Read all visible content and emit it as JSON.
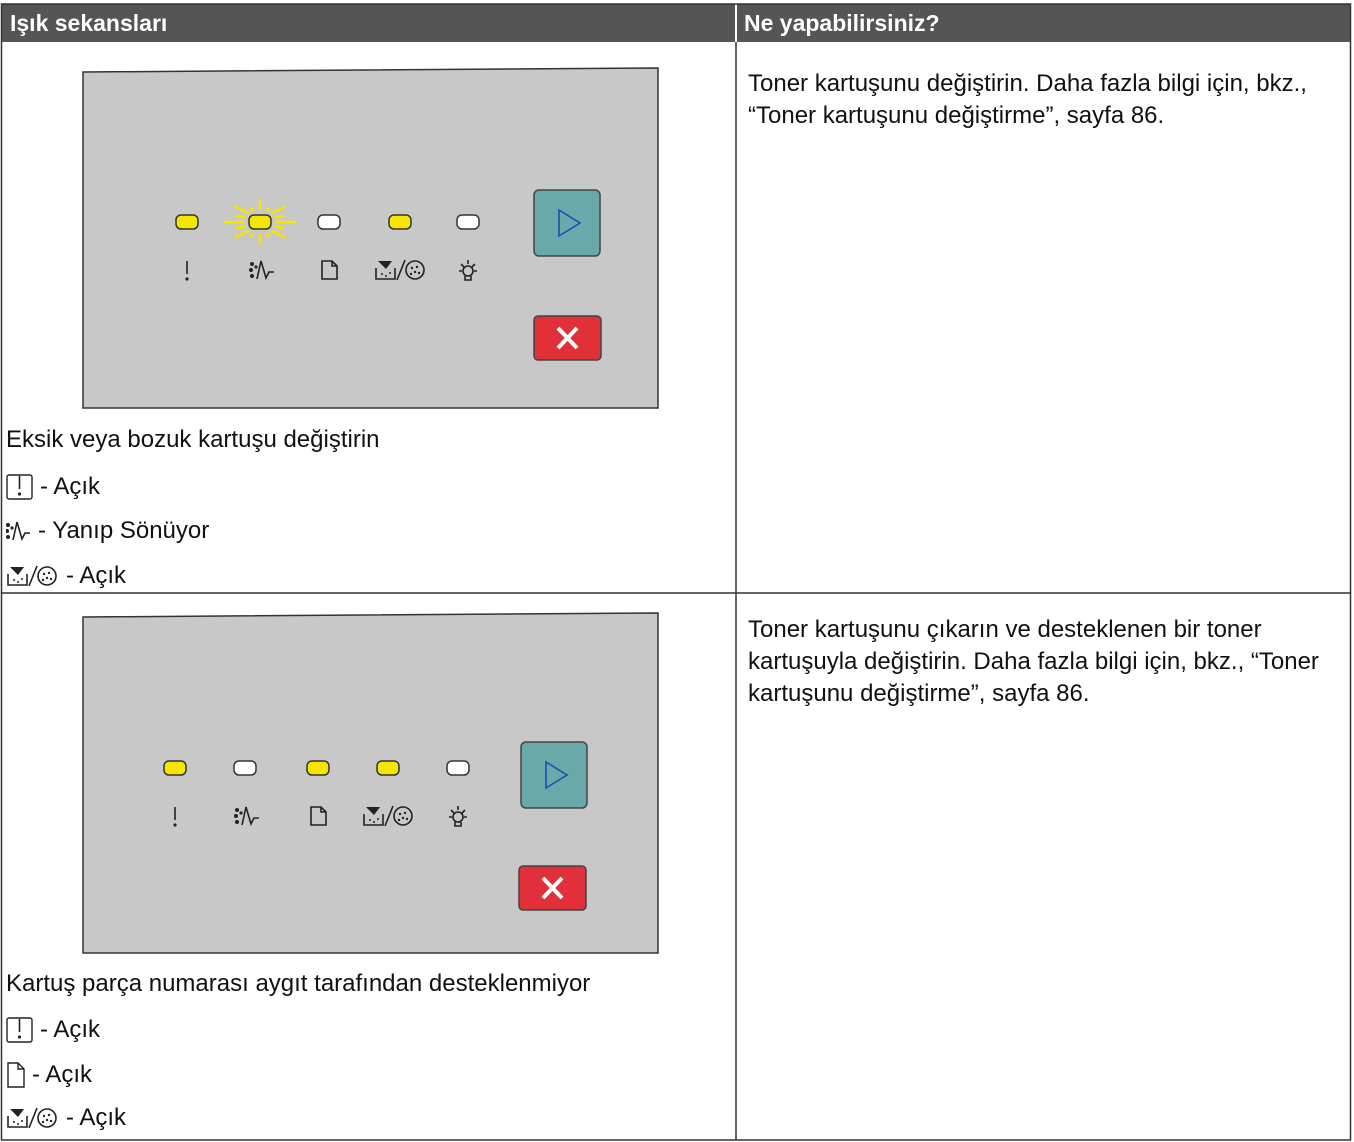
{
  "table": {
    "headers": [
      "Işık sekansları",
      "Ne yapabilirsiniz?"
    ],
    "rows": [
      {
        "caption": "Eksik veya bozuk kartuşu değiştirin",
        "lights": [
          "- Açık",
          "- Yanıp Sönüyor",
          "- Açık"
        ],
        "action": "Toner kartuşunu değiştirin. Daha fazla bilgi için, bkz., “Toner kartuşunu değiştirme”, sayfa 86."
      },
      {
        "caption": "Kartuş parça numarası aygıt tarafından desteklenmiyor",
        "lights": [
          "- Açık",
          "- Açık",
          "- Açık"
        ],
        "action": "Toner kartuşunu çıkarın ve desteklenen bir toner kartuşuyla değiştirin. Daha fazla bilgi için, bkz., “Toner kartuşunu değiştirme”, sayfa 86."
      }
    ]
  }
}
